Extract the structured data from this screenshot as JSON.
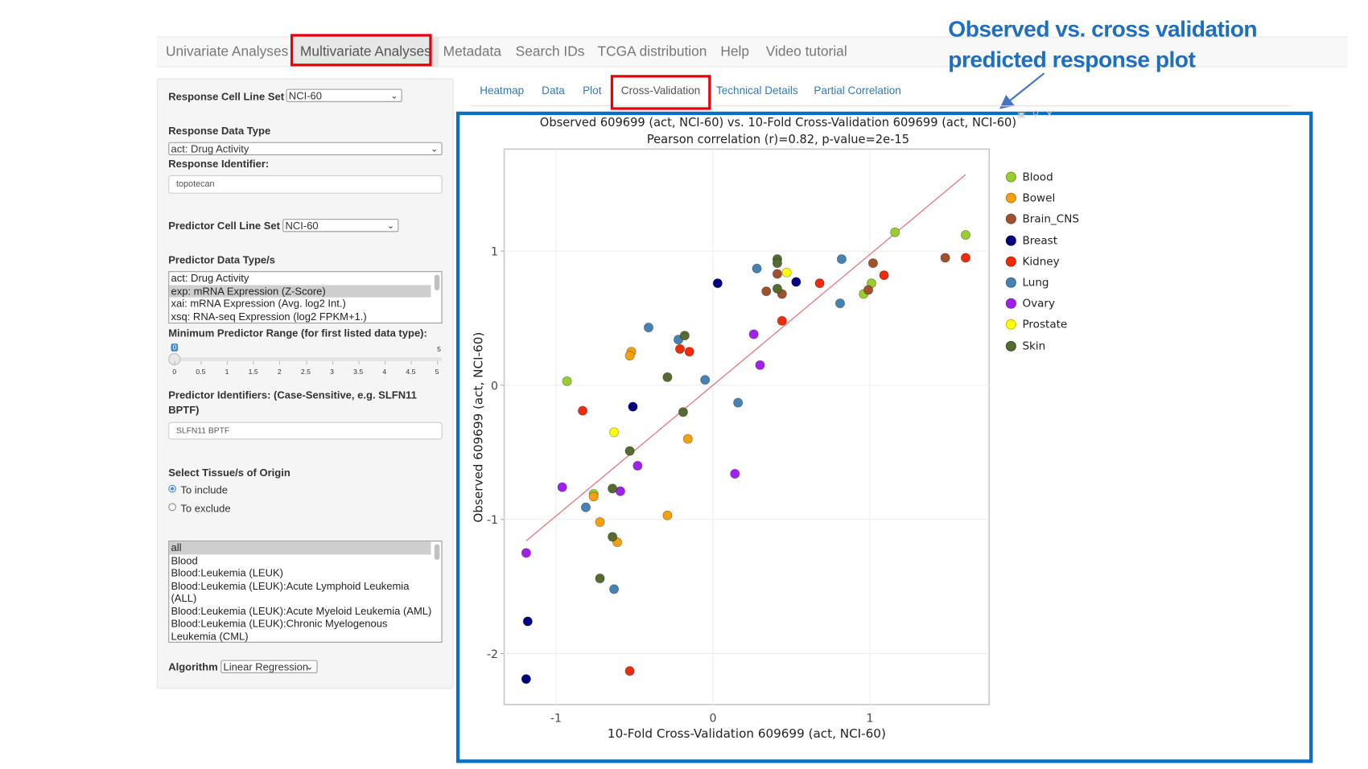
{
  "nav": {
    "items": [
      {
        "label": "Univariate Analyses",
        "active": false
      },
      {
        "label": "Multivariate Analyses",
        "active": true
      },
      {
        "label": "Metadata",
        "active": false
      },
      {
        "label": "Search IDs",
        "active": false
      },
      {
        "label": "TCGA distribution",
        "active": false
      },
      {
        "label": "Help",
        "active": false
      },
      {
        "label": "Video tutorial",
        "active": false
      }
    ]
  },
  "annotation": {
    "line1": "Observed vs. cross validation",
    "line2": "predicted response plot",
    "color": "#1f6fc0",
    "highlight_color": "#e8000b"
  },
  "sidebar": {
    "response_cell_line_set": {
      "label": "Response Cell Line Set",
      "value": "NCI-60"
    },
    "response_data_type": {
      "label": "Response Data Type",
      "value": "act: Drug Activity"
    },
    "response_identifier": {
      "label": "Response Identifier:",
      "value": "topotecan"
    },
    "predictor_cell_line_set": {
      "label": "Predictor Cell Line Set",
      "value": "NCI-60"
    },
    "predictor_data_types": {
      "label": "Predictor Data Type/s",
      "options": [
        {
          "label": "act: Drug Activity",
          "selected": false
        },
        {
          "label": "exp: mRNA Expression (Z-Score)",
          "selected": true
        },
        {
          "label": "xai: mRNA Expression (Avg. log2 Int.)",
          "selected": false
        },
        {
          "label": "xsq: RNA-seq Expression (log2 FPKM+1.)",
          "selected": false
        }
      ]
    },
    "min_predictor_range": {
      "label": "Minimum Predictor Range (for first listed data type):",
      "value": "0",
      "min": "0",
      "max": "5",
      "ticks": [
        "0",
        "0.5",
        "1",
        "1.5",
        "2",
        "2.5",
        "3",
        "3.5",
        "4",
        "4.5",
        "5"
      ]
    },
    "predictor_identifiers": {
      "label_line1": "Predictor Identifiers: (Case-Sensitive, e.g. SLFN11",
      "label_line2": "BPTF)",
      "value": "SLFN11 BPTF"
    },
    "tissue_origin": {
      "label": "Select Tissue/s of Origin",
      "include_label": "To include",
      "exclude_label": "To exclude",
      "selected": "include",
      "options": [
        {
          "label": "all",
          "selected": true
        },
        {
          "label": "Blood",
          "selected": false
        },
        {
          "label": "Blood:Leukemia (LEUK)",
          "selected": false
        },
        {
          "label": "Blood:Leukemia (LEUK):Acute Lymphoid Leukemia (ALL)",
          "selected": false
        },
        {
          "label": "Blood:Leukemia (LEUK):Acute Myeloid Leukemia (AML)",
          "selected": false
        },
        {
          "label": "Blood:Leukemia (LEUK):Chronic Myelogenous Leukemia (CML)",
          "selected": false
        }
      ]
    },
    "algorithm": {
      "label": "Algorithm",
      "value": "Linear Regression"
    }
  },
  "tabs": [
    {
      "label": "Heatmap",
      "active": false
    },
    {
      "label": "Data",
      "active": false
    },
    {
      "label": "Plot",
      "active": false
    },
    {
      "label": "Cross-Validation",
      "active": true
    },
    {
      "label": "Technical Details",
      "active": false
    },
    {
      "label": "Partial Correlation",
      "active": false
    }
  ],
  "chart_data": {
    "type": "scatter",
    "title": "Observed 609699 (act, NCI-60) vs. 10-Fold Cross-Validation 609699 (act, NCI-60)",
    "subtitle": "Pearson correlation (r)=0.82, p-value=2e-15",
    "xlabel": "10-Fold Cross-Validation 609699 (act, NCI-60)",
    "ylabel": "Observed 609699 (act, NCI-60)",
    "xlim": [
      -1.33,
      1.76
    ],
    "ylim": [
      -2.38,
      1.76
    ],
    "xticks": [
      -1,
      0,
      1
    ],
    "yticks": [
      -2,
      -1,
      0,
      1
    ],
    "grid": true,
    "legend_placement": "right",
    "fit_line": {
      "x": [
        -1.19,
        1.61
      ],
      "y": [
        -1.16,
        1.57
      ],
      "color": "#e8777f"
    },
    "series": [
      {
        "name": "Blood",
        "color": "#9acd32",
        "points": [
          [
            -0.93,
            0.03
          ],
          [
            1.16,
            1.14
          ],
          [
            1.61,
            1.12
          ],
          [
            1.01,
            0.76
          ],
          [
            0.96,
            0.68
          ],
          [
            -0.76,
            -0.81
          ]
        ]
      },
      {
        "name": "Bowel",
        "color": "#f5a00f",
        "points": [
          [
            -0.52,
            0.25
          ],
          [
            -0.53,
            0.22
          ],
          [
            -0.16,
            -0.4
          ],
          [
            -0.76,
            -0.83
          ],
          [
            -0.72,
            -1.02
          ],
          [
            -0.61,
            -1.17
          ],
          [
            -0.29,
            -0.97
          ]
        ]
      },
      {
        "name": "Brain_CNS",
        "color": "#a0522d",
        "points": [
          [
            0.41,
            0.83
          ],
          [
            0.34,
            0.7
          ],
          [
            0.44,
            0.68
          ],
          [
            1.02,
            0.91
          ],
          [
            0.99,
            0.71
          ],
          [
            1.48,
            0.95
          ]
        ]
      },
      {
        "name": "Breast",
        "color": "#000080",
        "points": [
          [
            0.03,
            0.76
          ],
          [
            0.53,
            0.77
          ],
          [
            -0.51,
            -0.16
          ],
          [
            -1.18,
            -1.76
          ],
          [
            -1.19,
            -2.19
          ]
        ]
      },
      {
        "name": "Kidney",
        "color": "#ee2c0c",
        "points": [
          [
            0.68,
            0.76
          ],
          [
            1.09,
            0.82
          ],
          [
            1.61,
            0.95
          ],
          [
            0.44,
            0.48
          ],
          [
            -0.21,
            0.27
          ],
          [
            -0.15,
            0.25
          ],
          [
            -0.83,
            -0.19
          ],
          [
            -0.53,
            -2.13
          ]
        ]
      },
      {
        "name": "Lung",
        "color": "#4682b4",
        "points": [
          [
            0.28,
            0.87
          ],
          [
            0.82,
            0.94
          ],
          [
            0.81,
            0.61
          ],
          [
            -0.41,
            0.43
          ],
          [
            -0.22,
            0.34
          ],
          [
            -0.05,
            0.04
          ],
          [
            0.16,
            -0.13
          ],
          [
            -0.81,
            -0.91
          ],
          [
            -0.63,
            -1.52
          ]
        ]
      },
      {
        "name": "Ovary",
        "color": "#a020f0",
        "points": [
          [
            0.26,
            0.38
          ],
          [
            0.3,
            0.15
          ],
          [
            -0.48,
            -0.6
          ],
          [
            -0.96,
            -0.76
          ],
          [
            -0.59,
            -0.79
          ],
          [
            0.14,
            -0.66
          ],
          [
            -1.19,
            -1.25
          ]
        ]
      },
      {
        "name": "Prostate",
        "color": "#ffff00",
        "points": [
          [
            0.47,
            0.84
          ],
          [
            -0.63,
            -0.35
          ]
        ]
      },
      {
        "name": "Skin",
        "color": "#556b2f",
        "points": [
          [
            0.41,
            0.94
          ],
          [
            0.41,
            0.91
          ],
          [
            0.41,
            0.72
          ],
          [
            -0.18,
            0.37
          ],
          [
            -0.29,
            0.06
          ],
          [
            -0.19,
            -0.2
          ],
          [
            -0.53,
            -0.49
          ],
          [
            -0.64,
            -0.77
          ],
          [
            -0.64,
            -1.13
          ],
          [
            -0.72,
            -1.44
          ]
        ]
      }
    ]
  }
}
